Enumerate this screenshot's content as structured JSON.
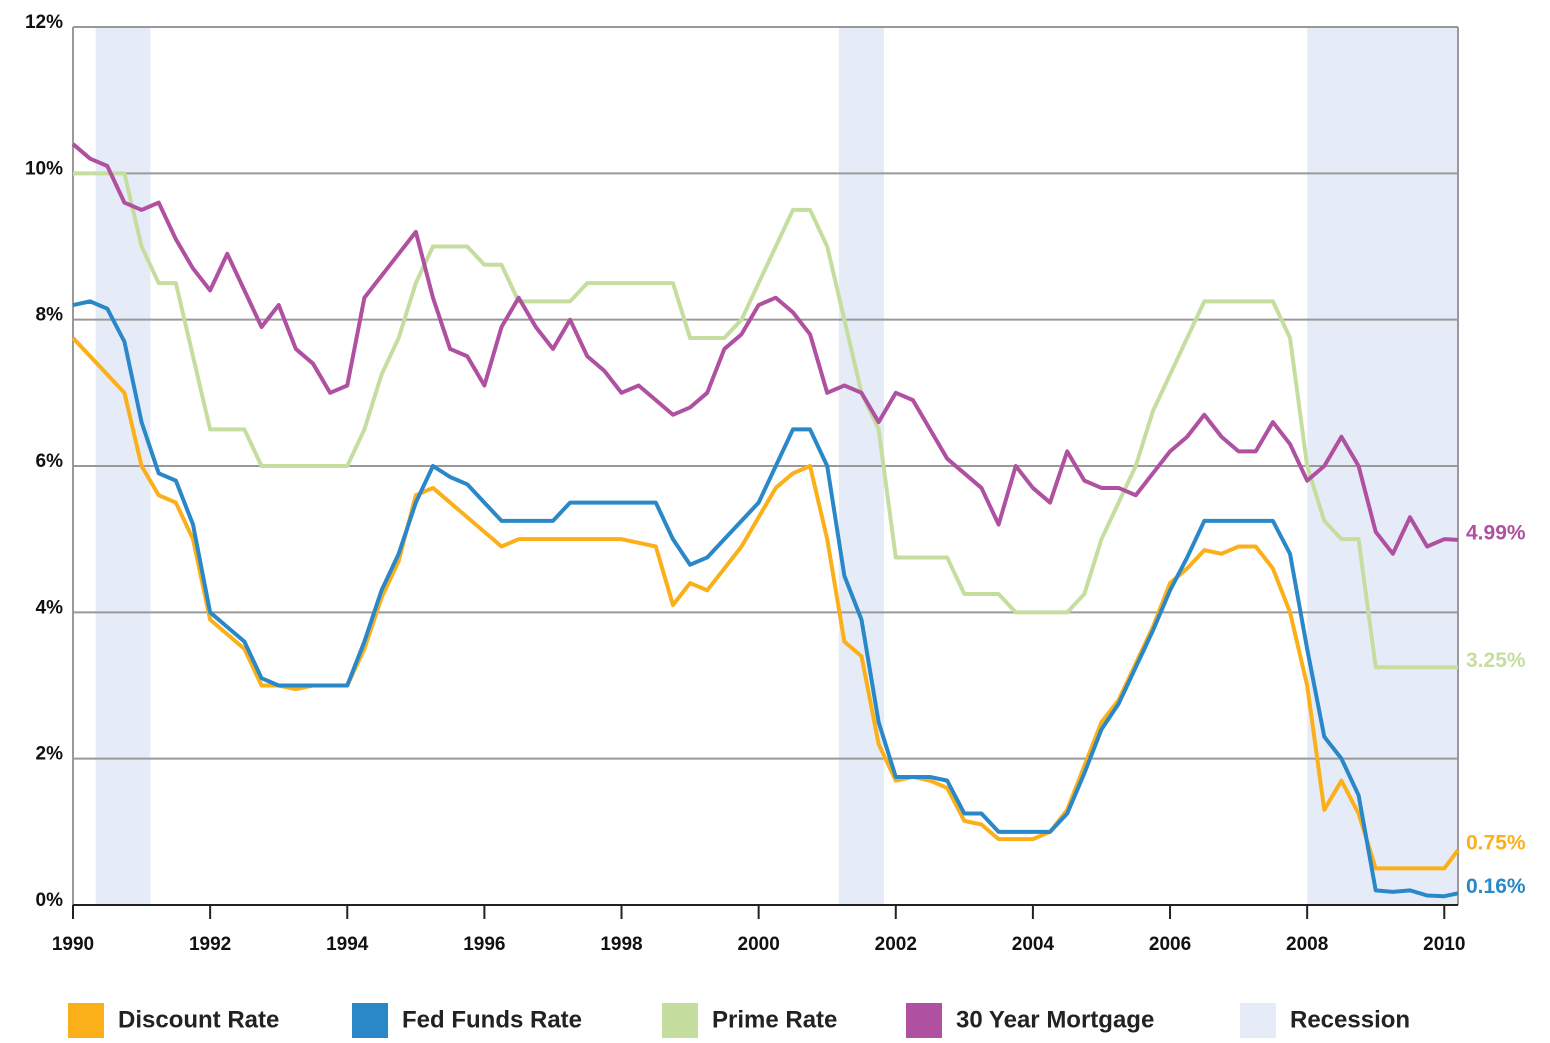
{
  "chart_data": {
    "type": "line",
    "x": [
      1990,
      1990.25,
      1990.5,
      1990.75,
      1991,
      1991.25,
      1991.5,
      1991.75,
      1992,
      1992.25,
      1992.5,
      1992.75,
      1993,
      1993.25,
      1993.5,
      1993.75,
      1994,
      1994.25,
      1994.5,
      1994.75,
      1995,
      1995.25,
      1995.5,
      1995.75,
      1996,
      1996.25,
      1996.5,
      1996.75,
      1997,
      1997.25,
      1997.5,
      1997.75,
      1998,
      1998.25,
      1998.5,
      1998.75,
      1999,
      1999.25,
      1999.5,
      1999.75,
      2000,
      2000.25,
      2000.5,
      2000.75,
      2001,
      2001.25,
      2001.5,
      2001.75,
      2002,
      2002.25,
      2002.5,
      2002.75,
      2003,
      2003.25,
      2003.5,
      2003.75,
      2004,
      2004.25,
      2004.5,
      2004.75,
      2005,
      2005.25,
      2005.5,
      2005.75,
      2006,
      2006.25,
      2006.5,
      2006.75,
      2007,
      2007.25,
      2007.5,
      2007.75,
      2008,
      2008.25,
      2008.5,
      2008.75,
      2009,
      2009.25,
      2009.5,
      2009.75,
      2010,
      2010.2
    ],
    "series": [
      {
        "name": "Discount Rate",
        "color": "#fbb01a",
        "end_label": "0.75%",
        "values": [
          7.75,
          7.5,
          7.25,
          7.0,
          6.0,
          5.6,
          5.5,
          5.0,
          3.9,
          3.7,
          3.5,
          3.0,
          3.0,
          2.95,
          3.0,
          3.0,
          3.0,
          3.5,
          4.2,
          4.7,
          5.6,
          5.7,
          5.5,
          5.3,
          5.1,
          4.9,
          5.0,
          5.0,
          5.0,
          5.0,
          5.0,
          5.0,
          5.0,
          4.95,
          4.9,
          4.1,
          4.4,
          4.3,
          4.6,
          4.9,
          5.3,
          5.7,
          5.9,
          6.0,
          5.0,
          3.6,
          3.4,
          2.2,
          1.7,
          1.75,
          1.7,
          1.6,
          1.15,
          1.1,
          0.9,
          0.9,
          0.9,
          1.0,
          1.3,
          1.9,
          2.5,
          2.8,
          3.3,
          3.8,
          4.4,
          4.6,
          4.85,
          4.8,
          4.9,
          4.9,
          4.6,
          4.0,
          3.0,
          1.3,
          1.7,
          1.25,
          0.5,
          0.5,
          0.5,
          0.5,
          0.5,
          0.75
        ]
      },
      {
        "name": "Fed Funds Rate",
        "color": "#2a88c8",
        "end_label": "0.16%",
        "values": [
          8.2,
          8.25,
          8.15,
          7.7,
          6.6,
          5.9,
          5.8,
          5.2,
          4.0,
          3.8,
          3.6,
          3.1,
          3.0,
          3.0,
          3.0,
          3.0,
          3.0,
          3.6,
          4.3,
          4.8,
          5.5,
          6.0,
          5.85,
          5.75,
          5.5,
          5.25,
          5.25,
          5.25,
          5.25,
          5.5,
          5.5,
          5.5,
          5.5,
          5.5,
          5.5,
          5.0,
          4.65,
          4.75,
          5.0,
          5.25,
          5.5,
          6.0,
          6.5,
          6.5,
          6.0,
          4.5,
          3.9,
          2.5,
          1.75,
          1.75,
          1.75,
          1.7,
          1.25,
          1.25,
          1.0,
          1.0,
          1.0,
          1.0,
          1.25,
          1.8,
          2.4,
          2.75,
          3.25,
          3.75,
          4.3,
          4.75,
          5.25,
          5.25,
          5.25,
          5.25,
          5.25,
          4.8,
          3.5,
          2.3,
          2.0,
          1.5,
          0.2,
          0.18,
          0.2,
          0.13,
          0.12,
          0.16
        ]
      },
      {
        "name": "Prime Rate",
        "color": "#c5dea0",
        "end_label": "3.25%",
        "values": [
          10.0,
          10.0,
          10.0,
          10.0,
          9.0,
          8.5,
          8.5,
          7.5,
          6.5,
          6.5,
          6.5,
          6.0,
          6.0,
          6.0,
          6.0,
          6.0,
          6.0,
          6.5,
          7.25,
          7.75,
          8.5,
          9.0,
          9.0,
          9.0,
          8.75,
          8.75,
          8.25,
          8.25,
          8.25,
          8.25,
          8.5,
          8.5,
          8.5,
          8.5,
          8.5,
          8.5,
          7.75,
          7.75,
          7.75,
          8.0,
          8.5,
          9.0,
          9.5,
          9.5,
          9.0,
          8.0,
          7.0,
          6.5,
          4.75,
          4.75,
          4.75,
          4.75,
          4.25,
          4.25,
          4.25,
          4.0,
          4.0,
          4.0,
          4.0,
          4.25,
          5.0,
          5.5,
          6.0,
          6.75,
          7.25,
          7.75,
          8.25,
          8.25,
          8.25,
          8.25,
          8.25,
          7.75,
          6.0,
          5.25,
          5.0,
          5.0,
          3.25,
          3.25,
          3.25,
          3.25,
          3.25,
          3.25
        ]
      },
      {
        "name": "30 Year Mortgage",
        "color": "#b050a0",
        "end_label": "4.99%",
        "values": [
          10.4,
          10.2,
          10.1,
          9.6,
          9.5,
          9.6,
          9.1,
          8.7,
          8.4,
          8.9,
          8.4,
          7.9,
          8.2,
          7.6,
          7.4,
          7.0,
          7.1,
          8.3,
          8.6,
          8.9,
          9.2,
          8.3,
          7.6,
          7.5,
          7.1,
          7.9,
          8.3,
          7.9,
          7.6,
          8.0,
          7.5,
          7.3,
          7.0,
          7.1,
          6.9,
          6.7,
          6.8,
          7.0,
          7.6,
          7.8,
          8.2,
          8.3,
          8.1,
          7.8,
          7.0,
          7.1,
          7.0,
          6.6,
          7.0,
          6.9,
          6.5,
          6.1,
          5.9,
          5.7,
          5.2,
          6.0,
          5.7,
          5.5,
          6.2,
          5.8,
          5.7,
          5.7,
          5.6,
          5.9,
          6.2,
          6.4,
          6.7,
          6.4,
          6.2,
          6.2,
          6.6,
          6.3,
          5.8,
          6.0,
          6.4,
          6.0,
          5.1,
          4.8,
          5.3,
          4.9,
          5.0,
          4.99
        ]
      }
    ],
    "recession_label": "Recession",
    "recession_color": "#e6ecf7",
    "recessions": [
      [
        1990.33,
        1991.13
      ],
      [
        2001.17,
        2001.83
      ],
      [
        2008.0,
        2010.2
      ]
    ],
    "xlim": [
      1990,
      2010.2
    ],
    "ylim": [
      0,
      12
    ],
    "xticks": [
      1990,
      1992,
      1994,
      1996,
      1998,
      2000,
      2002,
      2004,
      2006,
      2008,
      2010
    ],
    "yticks": [
      {
        "value": 0,
        "label": "0%"
      },
      {
        "value": 2,
        "label": "2%"
      },
      {
        "value": 4,
        "label": "4%"
      },
      {
        "value": 6,
        "label": "6%"
      },
      {
        "value": 8,
        "label": "8%"
      },
      {
        "value": 10,
        "label": "10%"
      },
      {
        "value": 12,
        "label": "12%"
      }
    ],
    "grid": true
  }
}
